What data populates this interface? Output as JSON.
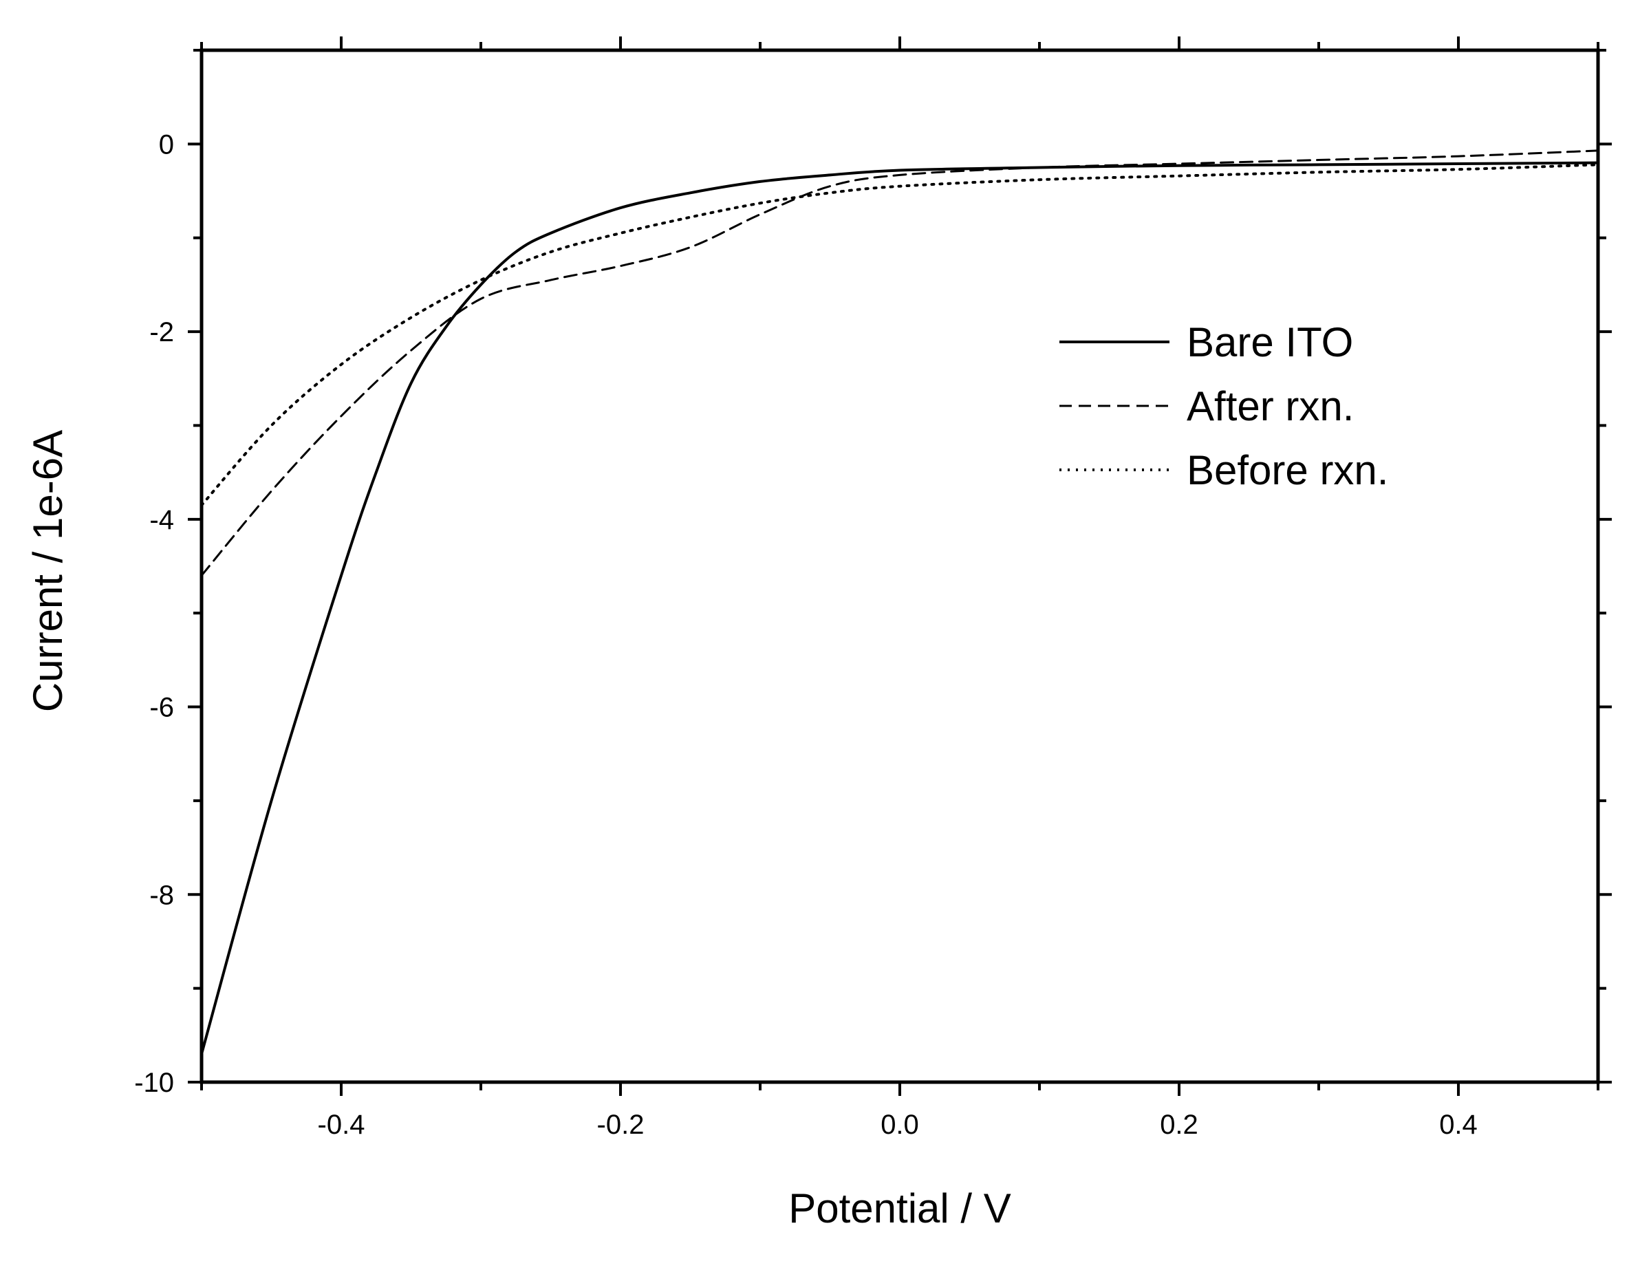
{
  "chart_data": {
    "type": "line",
    "title": "",
    "xlabel": "Potential / V",
    "ylabel": "Current / 1e-6A",
    "xlim": [
      -0.5,
      0.5
    ],
    "ylim": [
      -10,
      1
    ],
    "x_ticks": [
      -0.4,
      -0.2,
      0.0,
      0.2,
      0.4
    ],
    "x_tick_labels": [
      "-0.4",
      "-0.2",
      "0.0",
      "0.2",
      "0.4"
    ],
    "y_ticks": [
      0,
      -2,
      -4,
      -6,
      -8,
      -10
    ],
    "y_tick_labels": [
      "0",
      "-2",
      "-4",
      "-6",
      "-8",
      "-10"
    ],
    "grid": false,
    "legend_position": "right",
    "series": [
      {
        "name": "Bare ITO",
        "style": "solid",
        "color": "#000000",
        "x": [
          -0.5,
          -0.45,
          -0.4,
          -0.375,
          -0.35,
          -0.325,
          -0.3,
          -0.275,
          -0.25,
          -0.2,
          -0.15,
          -0.1,
          -0.05,
          0.0,
          0.1,
          0.2,
          0.3,
          0.4,
          0.5
        ],
        "y": [
          -9.7,
          -7.0,
          -4.6,
          -3.5,
          -2.55,
          -1.95,
          -1.5,
          -1.15,
          -0.95,
          -0.68,
          -0.52,
          -0.4,
          -0.33,
          -0.28,
          -0.25,
          -0.23,
          -0.22,
          -0.21,
          -0.2
        ]
      },
      {
        "name": "After rxn.",
        "style": "dashed",
        "color": "#000000",
        "x": [
          -0.5,
          -0.45,
          -0.4,
          -0.35,
          -0.3,
          -0.25,
          -0.2,
          -0.15,
          -0.1,
          -0.05,
          0.0,
          0.1,
          0.2,
          0.3,
          0.4,
          0.5
        ],
        "y": [
          -4.6,
          -3.7,
          -2.9,
          -2.2,
          -1.65,
          -1.45,
          -1.3,
          -1.1,
          -0.75,
          -0.45,
          -0.33,
          -0.25,
          -0.21,
          -0.17,
          -0.13,
          -0.07
        ]
      },
      {
        "name": "Before rxn.",
        "style": "dotted",
        "color": "#000000",
        "x": [
          -0.5,
          -0.45,
          -0.4,
          -0.35,
          -0.3,
          -0.25,
          -0.2,
          -0.15,
          -0.1,
          -0.05,
          0.0,
          0.1,
          0.2,
          0.3,
          0.4,
          0.5
        ],
        "y": [
          -3.85,
          -3.0,
          -2.35,
          -1.85,
          -1.45,
          -1.15,
          -0.95,
          -0.78,
          -0.63,
          -0.52,
          -0.45,
          -0.38,
          -0.34,
          -0.3,
          -0.27,
          -0.22
        ]
      }
    ]
  }
}
